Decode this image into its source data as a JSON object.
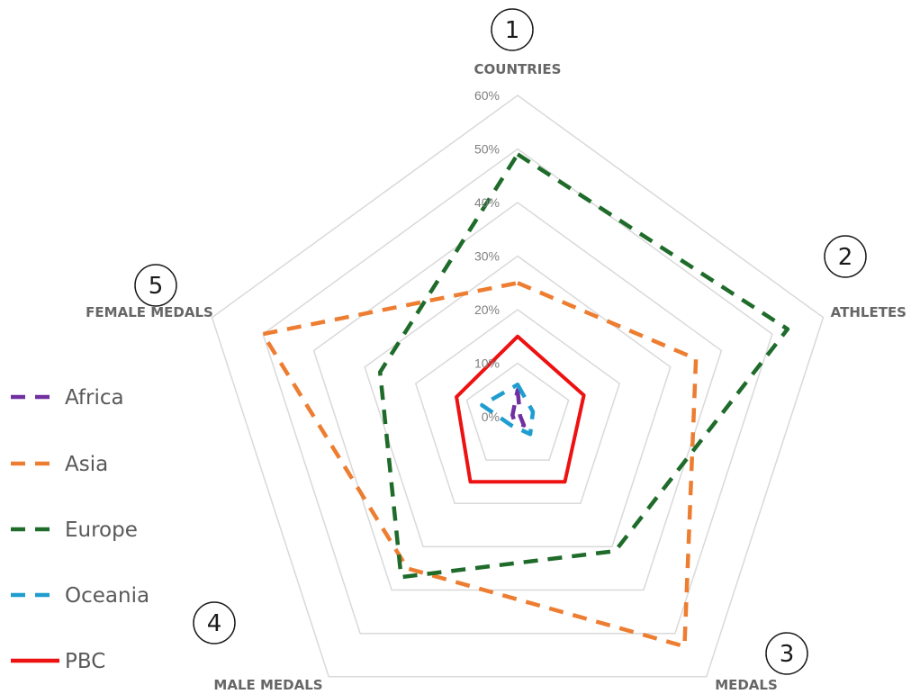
{
  "chart_data": {
    "type": "radar",
    "axes": [
      "COUNTRIES",
      "ATHLETES",
      "MEDALS",
      "MALE MEDALS",
      "FEMALE MEDALS"
    ],
    "axis_badges": [
      "1",
      "2",
      "3",
      "4",
      "5"
    ],
    "ticks": [
      "0%",
      "10%",
      "20%",
      "30%",
      "40%",
      "50%",
      "60%"
    ],
    "rmax": 60,
    "grid": true,
    "legend_position": "left",
    "series": [
      {
        "name": "Africa",
        "color": "#7030a0",
        "dash": "dashed",
        "values": [
          5,
          0.5,
          2,
          1,
          1
        ]
      },
      {
        "name": "Asia",
        "color": "#ed7d31",
        "dash": "dashed",
        "values": [
          25,
          35,
          53,
          35,
          50
        ]
      },
      {
        "name": "Europe",
        "color": "#1e6b2a",
        "dash": "dashed",
        "values": [
          49,
          53,
          31,
          37,
          27
        ]
      },
      {
        "name": "Oceania",
        "color": "#1f9dd0",
        "dash": "dashed",
        "values": [
          6,
          3,
          4,
          2,
          7
        ]
      },
      {
        "name": "PBC",
        "color": "#ee1111",
        "dash": "solid",
        "values": [
          15,
          13,
          15,
          15,
          12
        ]
      }
    ]
  }
}
